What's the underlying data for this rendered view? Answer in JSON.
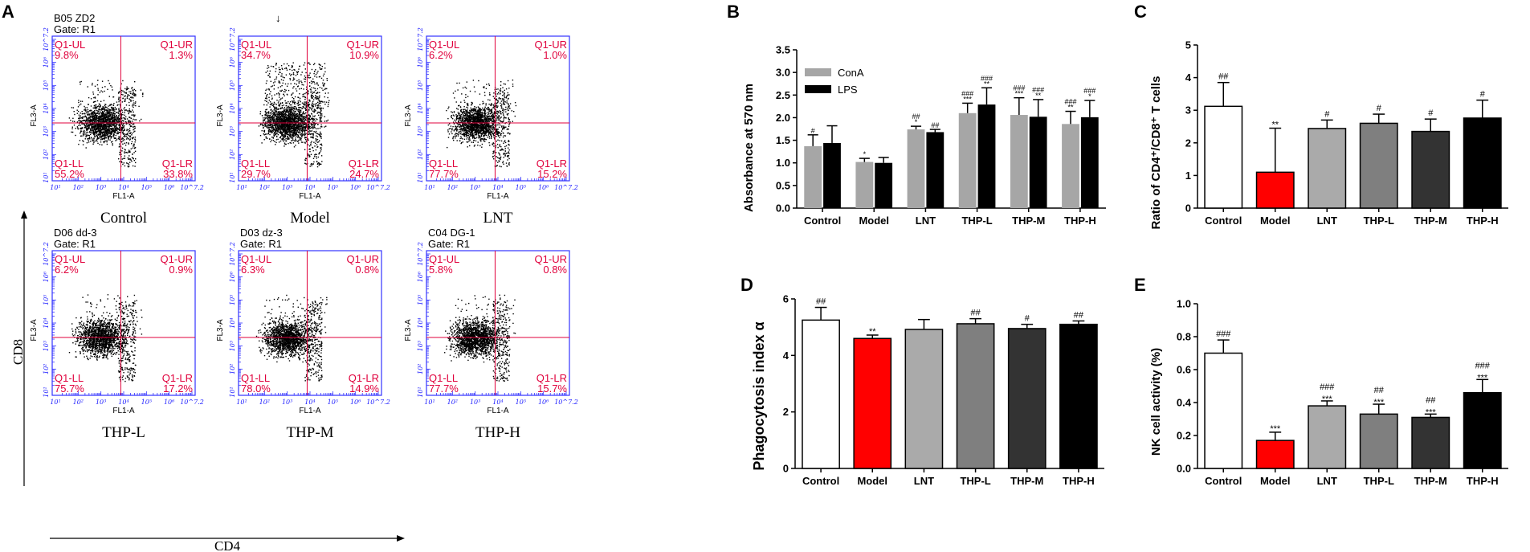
{
  "colors": {
    "flow_frame": "#3333ff",
    "quadrant_line": "#e0003c",
    "quadrant_text": "#e0003c",
    "dots": "#000000",
    "cona": "#a6a6a6",
    "lps": "#000000",
    "control": "#ffffff",
    "model": "#ff0000",
    "lnt": "#aaaaaa",
    "thp_l": "#7f7f7f",
    "thp_m": "#333333",
    "thp_h": "#000000"
  },
  "panel_a": {
    "letter": "A",
    "y_axis_label": "CD8",
    "x_axis_label": "CD4",
    "flow_x_label": "FL1-A",
    "flow_y_label": "FL3-A",
    "ticks": [
      "10¹",
      "10²",
      "10³",
      "10⁴",
      "10⁵",
      "10⁶",
      "10^7.2"
    ],
    "plots": [
      {
        "title": "Control",
        "header1": "B05 ZD2",
        "header2": "Gate: R1",
        "ul": "Q1-UL",
        "ul_val": "9.8%",
        "ur": "Q1-UR",
        "ur_val": "1.3%",
        "ll": "Q1-LL",
        "ll_val": "55.2%",
        "lr": "Q1-LR",
        "lr_val": "33.8%"
      },
      {
        "title": "Model",
        "header1": "↓",
        "header2": "",
        "ul": "Q1-UL",
        "ul_val": "34.7%",
        "ur": "Q1-UR",
        "ur_val": "10.9%",
        "ll": "Q1-LL",
        "ll_val": "29.7%",
        "lr": "Q1-LR",
        "lr_val": "24.7%"
      },
      {
        "title": "LNT",
        "header1": "",
        "header2": "",
        "ul": "Q1-UL",
        "ul_val": "6.2%",
        "ur": "Q1-UR",
        "ur_val": "1.0%",
        "ll": "Q1-LL",
        "ll_val": "77.7%",
        "lr": "Q1-LR",
        "lr_val": "15.2%"
      },
      {
        "title": "THP-L",
        "header1": "D06 dd-3",
        "header2": "Gate: R1",
        "ul": "Q1-UL",
        "ul_val": "6.2%",
        "ur": "Q1-UR",
        "ur_val": "0.9%",
        "ll": "Q1-LL",
        "ll_val": "75.7%",
        "lr": "Q1-LR",
        "lr_val": "17.2%"
      },
      {
        "title": "THP-M",
        "header1": "D03 dz-3",
        "header2": "Gate: R1",
        "ul": "Q1-UL",
        "ul_val": "6.3%",
        "ur": "Q1-UR",
        "ur_val": "0.8%",
        "ll": "Q1-LL",
        "ll_val": "78.0%",
        "lr": "Q1-LR",
        "lr_val": "14.9%"
      },
      {
        "title": "THP-H",
        "header1": "C04 DG-1",
        "header2": "Gate: R1",
        "ul": "Q1-UL",
        "ul_val": "5.8%",
        "ur": "Q1-UR",
        "ur_val": "0.8%",
        "ll": "Q1-LL",
        "ll_val": "77.7%",
        "lr": "Q1-LR",
        "lr_val": "15.7%"
      }
    ]
  },
  "chart_data": [
    {
      "id": "B",
      "letter": "B",
      "type": "bar",
      "ylabel": "Absorbance at 570 nm",
      "categories": [
        "Control",
        "Model",
        "LNT",
        "THP-L",
        "THP-M",
        "THP-H"
      ],
      "ylim": [
        0,
        3.5
      ],
      "yticks": [
        "0.0",
        "0.5",
        "1.0",
        "1.5",
        "2.0",
        "2.5",
        "3.0",
        "3.5"
      ],
      "legend": [
        "ConA",
        "LPS"
      ],
      "series": [
        {
          "name": "ConA",
          "values": [
            1.37,
            1.02,
            1.74,
            2.1,
            2.06,
            1.86
          ],
          "errors": [
            0.25,
            0.08,
            0.07,
            0.22,
            0.38,
            0.28
          ],
          "sig_top": [
            "",
            "",
            "##",
            "###",
            "###",
            "###"
          ],
          "sig_bottom": [
            "#",
            "*",
            "*",
            "***",
            "***",
            "**"
          ]
        },
        {
          "name": "LPS",
          "values": [
            1.44,
            1.0,
            1.68,
            2.29,
            2.02,
            2.01
          ],
          "errors": [
            0.38,
            0.12,
            0.06,
            0.37,
            0.38,
            0.37
          ],
          "sig_top": [
            "",
            "",
            "",
            "###",
            "###",
            "###"
          ],
          "sig_bottom": [
            "",
            "",
            "##",
            "**",
            "**",
            "*"
          ]
        }
      ]
    },
    {
      "id": "C",
      "letter": "C",
      "type": "bar",
      "ylabel": "Ratio of CD4⁺/CD8⁺ T cells",
      "categories": [
        "Control",
        "Model",
        "LNT",
        "THP-L",
        "THP-M",
        "THP-H"
      ],
      "ylim": [
        0,
        5
      ],
      "yticks": [
        "0",
        "1",
        "2",
        "3",
        "4",
        "5"
      ],
      "values": [
        3.12,
        1.1,
        2.44,
        2.6,
        2.35,
        2.76
      ],
      "errors": [
        0.73,
        1.35,
        0.26,
        0.28,
        0.38,
        0.55
      ],
      "sig_top": [
        "##",
        "",
        "#",
        "#",
        "#",
        "#"
      ],
      "sig_bottom": [
        "",
        "**",
        "",
        "",
        "",
        ""
      ]
    },
    {
      "id": "D",
      "letter": "D",
      "type": "bar",
      "ylabel": "Phagocytosis index α",
      "categories": [
        "Control",
        "Model",
        "LNT",
        "THP-L",
        "THP-M",
        "THP-H"
      ],
      "ylim": [
        0,
        6
      ],
      "yticks": [
        "0",
        "2",
        "4",
        "6"
      ],
      "values": [
        5.25,
        4.6,
        4.92,
        5.12,
        4.95,
        5.1
      ],
      "errors": [
        0.45,
        0.12,
        0.35,
        0.18,
        0.15,
        0.12
      ],
      "sig_top": [
        "##",
        "",
        "",
        "##",
        "#",
        "##"
      ],
      "sig_bottom": [
        "",
        "**",
        "",
        "",
        "",
        ""
      ]
    },
    {
      "id": "E",
      "letter": "E",
      "type": "bar",
      "ylabel": "NK cell activity (%)",
      "categories": [
        "Control",
        "Model",
        "LNT",
        "THP-L",
        "THP-M",
        "THP-H"
      ],
      "ylim": [
        0,
        1.0
      ],
      "yticks": [
        "0.0",
        "0.2",
        "0.4",
        "0.6",
        "0.8",
        "1.0"
      ],
      "values": [
        0.7,
        0.17,
        0.38,
        0.33,
        0.31,
        0.46
      ],
      "errors": [
        0.08,
        0.05,
        0.03,
        0.06,
        0.02,
        0.08
      ],
      "sig_top": [
        "###",
        "",
        "###",
        "##",
        "##",
        "###"
      ],
      "sig_bottom": [
        "",
        "***",
        "***",
        "***",
        "***",
        "***"
      ]
    }
  ]
}
